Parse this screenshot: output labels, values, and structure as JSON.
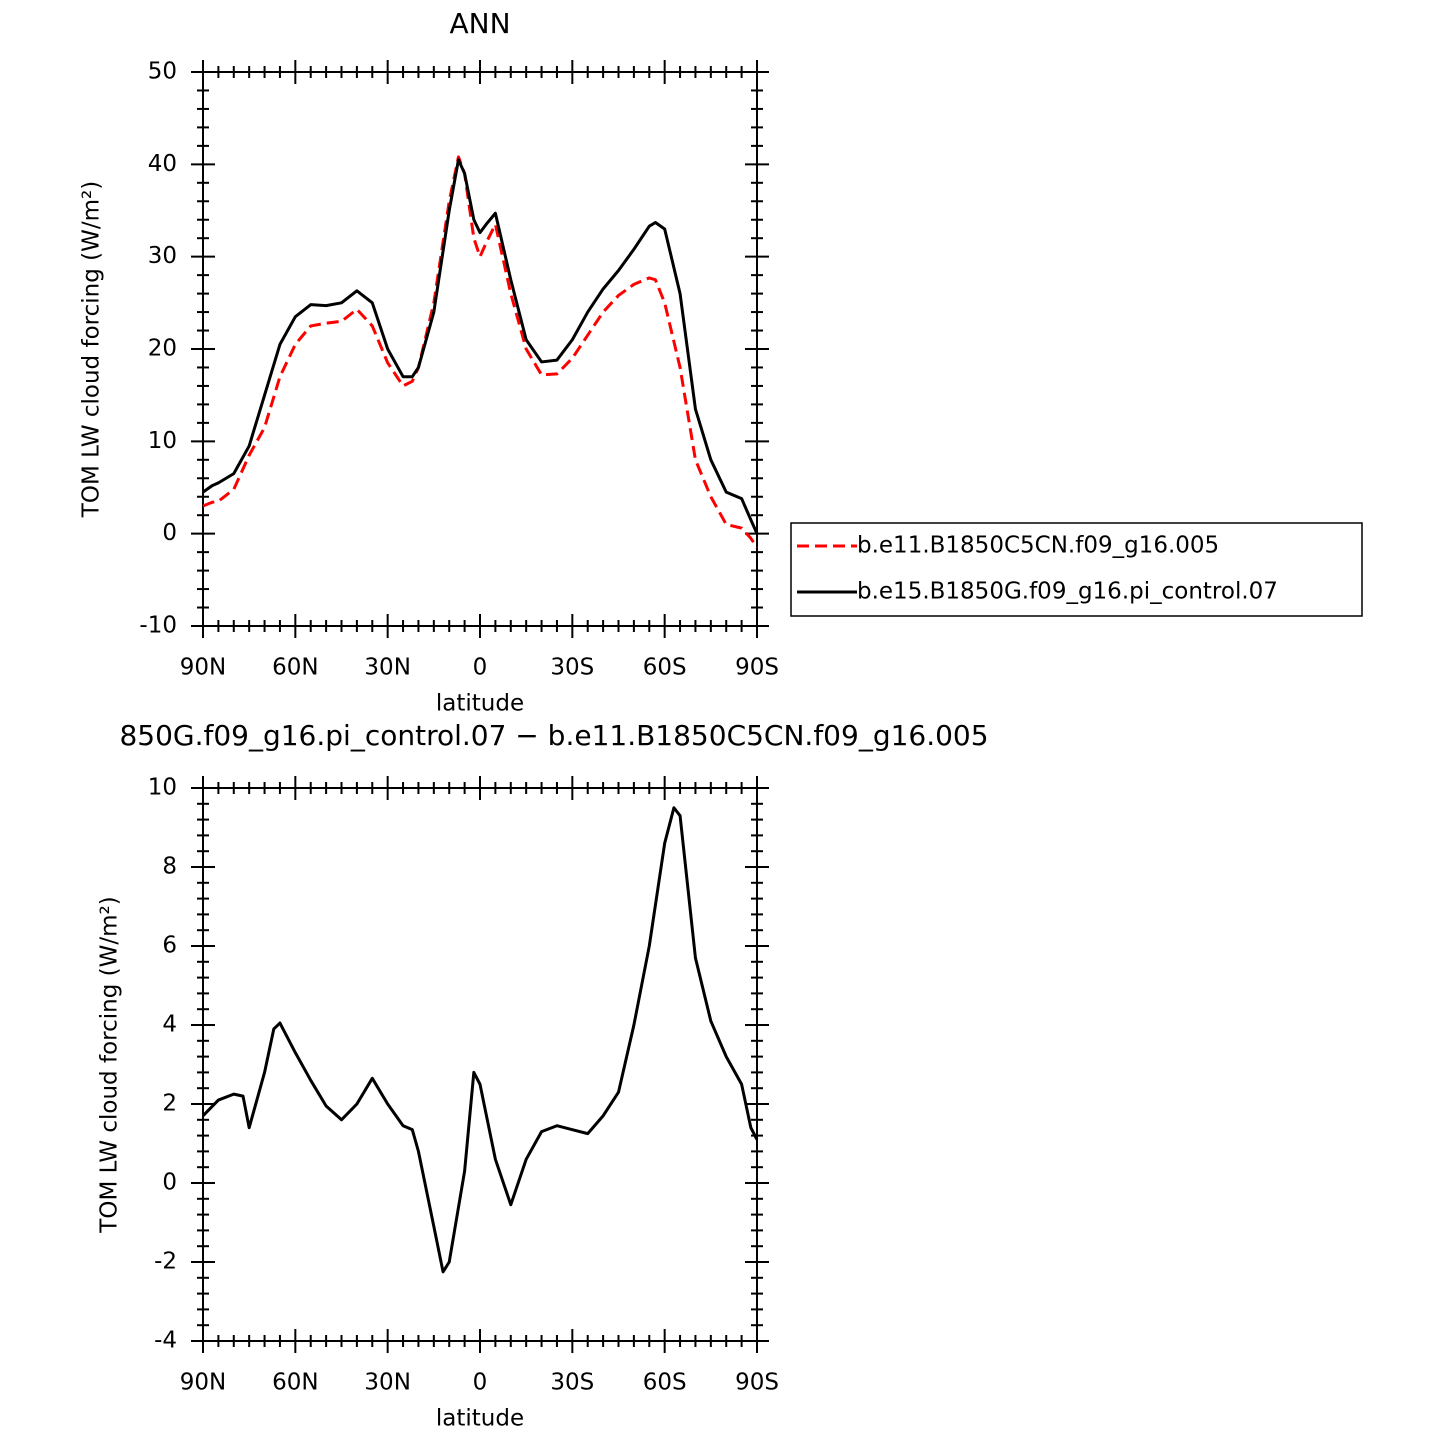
{
  "chart_data": [
    {
      "type": "line",
      "title": "ANN",
      "xlabel": "latitude",
      "ylabel": "TOM LW cloud forcing (W/m²)",
      "x": [
        90,
        87,
        85,
        80,
        75,
        70,
        65,
        60,
        55,
        50,
        45,
        40,
        35,
        30,
        25,
        22,
        20,
        15,
        10,
        7,
        5,
        2,
        0,
        -2,
        -5,
        -10,
        -15,
        -20,
        -25,
        -30,
        -35,
        -40,
        -45,
        -50,
        -55,
        -57,
        -60,
        -65,
        -70,
        -75,
        -80,
        -85,
        -88,
        -90
      ],
      "series": [
        {
          "name": "b.e11.B1850C5CN.f09_g16.005",
          "color": "#ff0000",
          "linestyle": "dashed",
          "values": [
            3,
            3.4,
            3.5,
            4.8,
            8.5,
            11.5,
            17,
            20.5,
            22.5,
            22.8,
            23,
            24.3,
            22.5,
            18.5,
            16,
            16.5,
            18,
            25,
            36,
            40.8,
            39,
            32,
            30,
            31.5,
            33.5,
            26,
            20,
            17.2,
            17.3,
            19,
            21.5,
            24,
            25.8,
            27,
            27.7,
            27.5,
            25,
            18,
            8,
            4,
            1,
            0.6,
            -0.5,
            -1.5
          ]
        },
        {
          "name": "b.e15.B1850G.f09_g16.pi_control.07",
          "color": "#000000",
          "linestyle": "solid",
          "values": [
            4.5,
            5.2,
            5.5,
            6.5,
            9.5,
            15,
            20.5,
            23.5,
            24.8,
            24.7,
            25,
            26.3,
            25,
            20,
            17,
            17,
            18,
            24,
            35,
            40.5,
            39,
            34,
            32.6,
            33.5,
            34.7,
            27.5,
            21,
            18.6,
            18.8,
            21,
            24,
            26.5,
            28.5,
            30.8,
            33.3,
            33.7,
            33,
            26,
            13.5,
            8,
            4.5,
            3.8,
            1.5,
            0
          ]
        }
      ],
      "xlim": [
        90,
        -90
      ],
      "xticks": [
        {
          "value": 90,
          "label": "90N"
        },
        {
          "value": 60,
          "label": "60N"
        },
        {
          "value": 30,
          "label": "30N"
        },
        0,
        {
          "value": -30,
          "label": "30S"
        },
        {
          "value": -60,
          "label": "60S"
        },
        {
          "value": -90,
          "label": "90S"
        }
      ],
      "ylim": [
        -10,
        50
      ],
      "yticks": [
        -10,
        0,
        10,
        20,
        30,
        40,
        50
      ],
      "legend": "right"
    },
    {
      "type": "line",
      "title": "850G.f09_g16.pi_control.07 − b.e11.B1850C5CN.f09_g16.005",
      "xlabel": "latitude",
      "ylabel": "TOM LW cloud forcing (W/m²)",
      "x": [
        90,
        85,
        80,
        77,
        75,
        70,
        67,
        65,
        60,
        55,
        50,
        45,
        40,
        35,
        30,
        25,
        22,
        20,
        15,
        12,
        10,
        5,
        2,
        0,
        -5,
        -10,
        -15,
        -20,
        -25,
        -30,
        -35,
        -40,
        -45,
        -50,
        -55,
        -60,
        -63,
        -65,
        -70,
        -75,
        -80,
        -85,
        -88,
        -90
      ],
      "series": [
        {
          "color": "#000000",
          "linestyle": "solid",
          "values": [
            1.7,
            2.1,
            2.25,
            2.2,
            1.4,
            2.8,
            3.9,
            4.05,
            3.3,
            2.6,
            1.95,
            1.6,
            2.0,
            2.65,
            2.0,
            1.45,
            1.35,
            0.8,
            -1.1,
            -2.25,
            -2.0,
            0.3,
            2.8,
            2.5,
            0.6,
            -0.55,
            0.6,
            1.3,
            1.45,
            1.35,
            1.25,
            1.7,
            2.3,
            4.0,
            6.0,
            8.6,
            9.5,
            9.3,
            5.7,
            4.1,
            3.2,
            2.5,
            1.4,
            1.1
          ]
        }
      ],
      "xlim": [
        90,
        -90
      ],
      "xticks": [
        {
          "value": 90,
          "label": "90N"
        },
        {
          "value": 60,
          "label": "60N"
        },
        {
          "value": 30,
          "label": "30N"
        },
        0,
        {
          "value": -30,
          "label": "30S"
        },
        {
          "value": -60,
          "label": "60S"
        },
        {
          "value": -90,
          "label": "90S"
        }
      ],
      "ylim": [
        -4,
        10
      ],
      "yticks": [
        -4,
        -2,
        0,
        2,
        4,
        6,
        8,
        10
      ]
    }
  ]
}
